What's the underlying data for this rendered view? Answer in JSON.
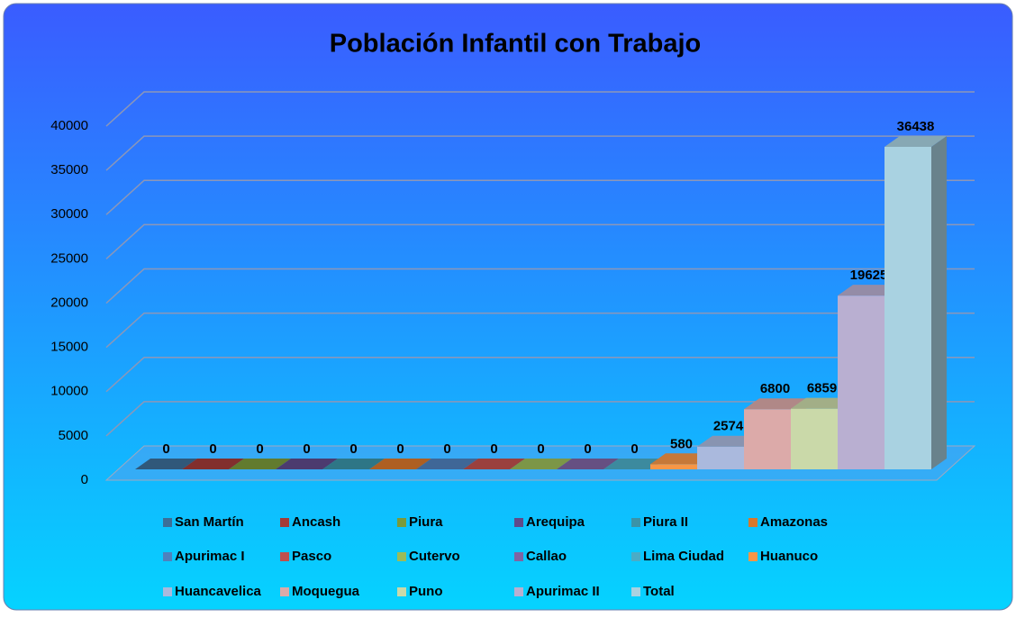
{
  "chart_data": {
    "type": "bar3d",
    "title": "Población Infantil  con Trabajo",
    "ylim": [
      0,
      40000
    ],
    "yticks": [
      0,
      5000,
      10000,
      15000,
      20000,
      25000,
      30000,
      35000,
      40000
    ],
    "grid": true,
    "legend": "bottom",
    "series": [
      {
        "name": "San Martín",
        "color": "#3c6e98",
        "values": [
          0
        ]
      },
      {
        "name": "Ancash",
        "color": "#a33b38",
        "values": [
          0
        ]
      },
      {
        "name": "Piura",
        "color": "#7b9a3a",
        "values": [
          0
        ]
      },
      {
        "name": "Arequipa",
        "color": "#5f4a8b",
        "values": [
          0
        ]
      },
      {
        "name": "Piura II",
        "color": "#3a93a8",
        "values": [
          0
        ]
      },
      {
        "name": "Amazonas",
        "color": "#d9772b",
        "values": [
          0
        ]
      },
      {
        "name": "Apurimac I",
        "color": "#4f81bd",
        "values": [
          0
        ]
      },
      {
        "name": "Pasco",
        "color": "#c0504d",
        "values": [
          0
        ]
      },
      {
        "name": "Cutervo",
        "color": "#9bbb59",
        "values": [
          0
        ]
      },
      {
        "name": "Callao",
        "color": "#8064a2",
        "values": [
          0
        ]
      },
      {
        "name": "Lima Ciudad",
        "color": "#4bacc6",
        "values": [
          0
        ]
      },
      {
        "name": "Huanuco",
        "color": "#f79646",
        "values": [
          580
        ]
      },
      {
        "name": "Huancavelica",
        "color": "#aab9dd",
        "values": [
          2574
        ]
      },
      {
        "name": "Moquegua",
        "color": "#dcaaa9",
        "values": [
          6800
        ]
      },
      {
        "name": "Puno",
        "color": "#cad9a9",
        "values": [
          6859
        ]
      },
      {
        "name": "Apurimac II",
        "color": "#b9afd1",
        "values": [
          19625
        ]
      },
      {
        "name": "Total",
        "color": "#a9d2e1",
        "values": [
          36438
        ]
      }
    ]
  }
}
